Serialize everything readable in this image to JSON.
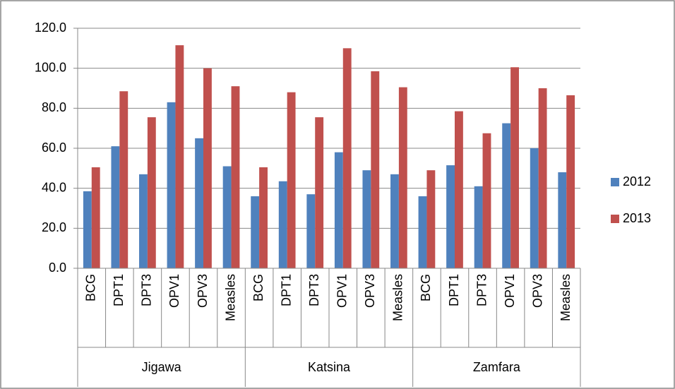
{
  "chart_data": {
    "type": "bar",
    "categories": [
      "BCG",
      "DPT1",
      "DPT3",
      "OPV1",
      "OPV3",
      "Measles",
      "BCG",
      "DPT1",
      "DPT3",
      "OPV1",
      "OPV3",
      "Measles",
      "BCG",
      "DPT1",
      "DPT3",
      "OPV1",
      "OPV3",
      "Measles"
    ],
    "groups": [
      "Jigawa",
      "Katsina",
      "Zamfara"
    ],
    "series": [
      {
        "name": "2012",
        "color": "#4f81bd",
        "values": [
          38.5,
          61,
          47,
          83,
          65,
          51,
          36,
          43.5,
          37,
          58,
          49,
          47,
          36,
          51.5,
          41,
          72.5,
          60,
          48
        ]
      },
      {
        "name": "2013",
        "color": "#c0504d",
        "values": [
          50.5,
          88.5,
          75.5,
          111.5,
          100,
          91,
          50.5,
          88,
          75.5,
          110,
          98.5,
          90.5,
          49,
          78.5,
          67.5,
          100.5,
          90,
          86.5
        ]
      }
    ],
    "ylim": [
      0,
      120
    ],
    "yticks": [
      {
        "value": 0,
        "label": "0.0"
      },
      {
        "value": 20,
        "label": "20.0"
      },
      {
        "value": 40,
        "label": "40.0"
      },
      {
        "value": 60,
        "label": "60.0"
      },
      {
        "value": 80,
        "label": "80.0"
      },
      {
        "value": 100,
        "label": "100.0"
      },
      {
        "value": 120,
        "label": "120.0"
      }
    ],
    "grid": true,
    "legend": "right"
  }
}
